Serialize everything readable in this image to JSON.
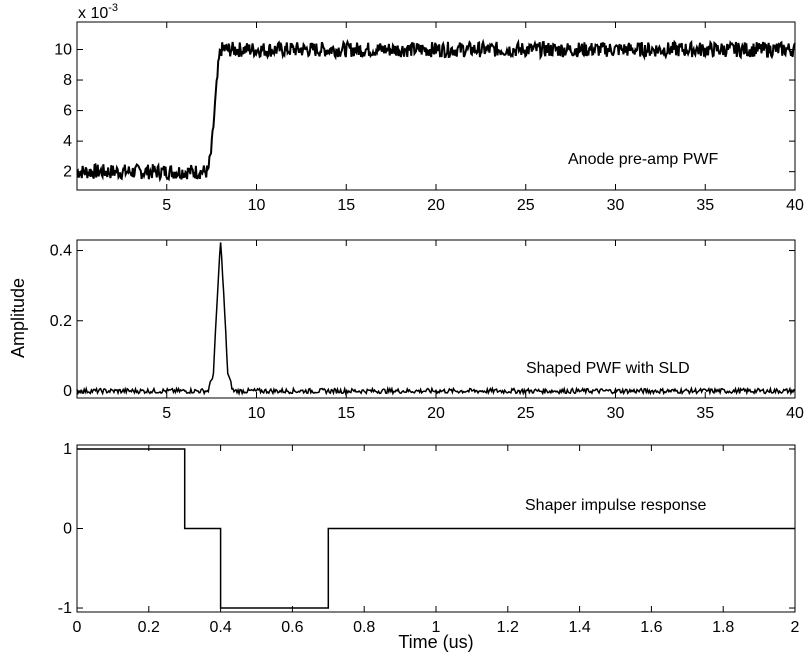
{
  "figure": {
    "ylabel": "Amplitude",
    "xlabel": "Time (us)"
  },
  "chart_data": [
    {
      "type": "line",
      "annotation": "Anode pre-amp PWF",
      "exponent_label": "x 10",
      "exponent_power": "-3",
      "xlim": [
        0,
        40
      ],
      "ylim": [
        0.8,
        11.8
      ],
      "xticks": [
        5,
        10,
        15,
        20,
        25,
        30,
        35,
        40
      ],
      "yticks": [
        2,
        4,
        6,
        8,
        10
      ],
      "grid": false,
      "noise": 0.5,
      "series": [
        {
          "x": [
            0,
            7.3,
            7.5,
            7.7,
            7.9,
            8.0,
            40
          ],
          "y": [
            2,
            2,
            3.5,
            6.5,
            9.2,
            10,
            10
          ]
        }
      ]
    },
    {
      "type": "line",
      "annotation": "Shaped PWF with SLD",
      "xlim": [
        0,
        40
      ],
      "ylim": [
        -0.02,
        0.43
      ],
      "xticks": [
        5,
        10,
        15,
        20,
        25,
        30,
        35,
        40
      ],
      "yticks": [
        0,
        0.2,
        0.4
      ],
      "grid": false,
      "noise": 0.007,
      "series": [
        {
          "x": [
            0,
            7.3,
            7.6,
            7.8,
            8.0,
            8.2,
            8.4,
            8.7,
            40
          ],
          "y": [
            0,
            0,
            0.05,
            0.25,
            0.43,
            0.25,
            0.05,
            0,
            0
          ]
        }
      ]
    },
    {
      "type": "line",
      "annotation": "Shaper impulse response",
      "xlim": [
        0,
        2
      ],
      "ylim": [
        -1.05,
        1.05
      ],
      "xticks": [
        0,
        0.2,
        0.4,
        0.6,
        0.8,
        1,
        1.2,
        1.4,
        1.6,
        1.8,
        2
      ],
      "yticks": [
        -1,
        0,
        1
      ],
      "grid": false,
      "series": [
        {
          "x": [
            0,
            0.3,
            0.3,
            0.4,
            0.4,
            0.7,
            0.7,
            2
          ],
          "y": [
            1,
            1,
            0,
            0,
            -1,
            -1,
            0,
            0
          ]
        }
      ]
    }
  ]
}
